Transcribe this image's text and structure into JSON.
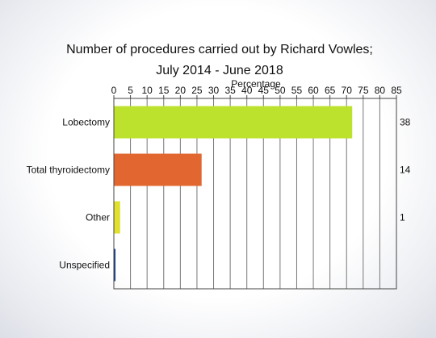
{
  "chart_data": {
    "type": "bar",
    "orientation": "horizontal",
    "title_lines": [
      "Number of procedures carried out by Richard Vowles;",
      "July 2014 - June 2018"
    ],
    "xlabel": "Percentage",
    "xlim": [
      0,
      85
    ],
    "xticks": [
      0,
      5,
      10,
      15,
      20,
      25,
      30,
      35,
      40,
      45,
      50,
      55,
      60,
      65,
      70,
      75,
      80,
      85
    ],
    "grid": true,
    "categories": [
      "Lobectomy",
      "Total thyroidectomy",
      "Other",
      "Unspecified"
    ],
    "values": [
      71.7,
      26.4,
      1.9,
      0.5
    ],
    "counts": [
      "38",
      "14",
      "1",
      ""
    ],
    "colors": [
      "#bde22e",
      "#e2662f",
      "#e0e030",
      "#1f3f8f"
    ]
  }
}
